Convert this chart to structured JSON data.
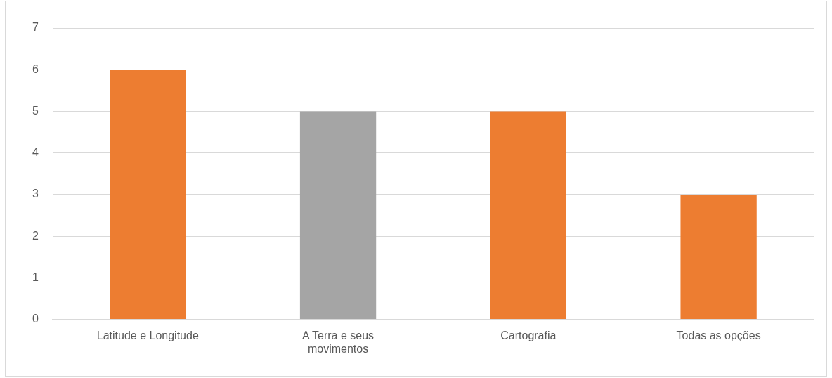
{
  "chart_data": {
    "type": "bar",
    "categories": [
      "Latitude e Longitude",
      "A Terra e seus movimentos",
      "Cartografia",
      "Todas as opções"
    ],
    "values": [
      6,
      5,
      5,
      3
    ],
    "colors": [
      "#ed7d31",
      "#a5a5a5",
      "#ed7d31",
      "#ed7d31"
    ],
    "ylim": [
      0,
      7
    ],
    "yticks": [
      0,
      1,
      2,
      3,
      4,
      5,
      6,
      7
    ],
    "grid": "y",
    "legend": false
  }
}
